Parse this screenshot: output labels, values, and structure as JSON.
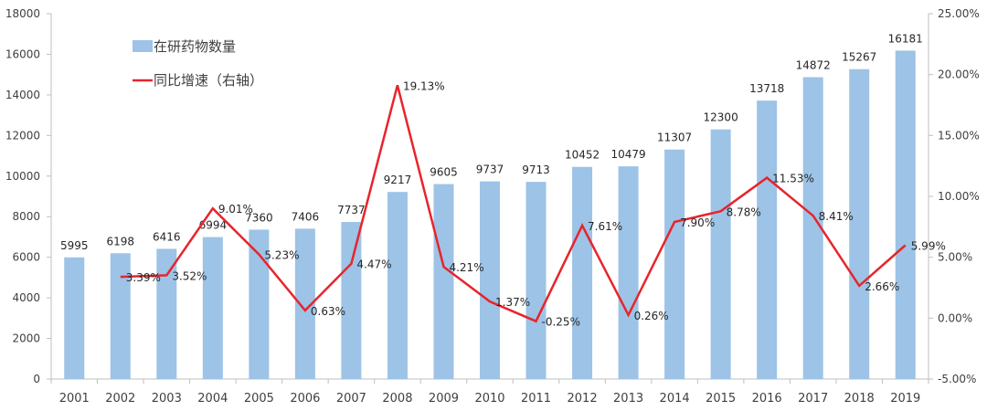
{
  "chart_data": {
    "type": "bar",
    "categories": [
      "2001",
      "2002",
      "2003",
      "2004",
      "2005",
      "2006",
      "2007",
      "2008",
      "2009",
      "2010",
      "2011",
      "2012",
      "2013",
      "2014",
      "2015",
      "2016",
      "2017",
      "2018",
      "2019"
    ],
    "series": [
      {
        "name": "在研药物数量",
        "type": "bar",
        "axis": "left",
        "color": "#9DC3E6",
        "values": [
          5995,
          6198,
          6416,
          6994,
          7360,
          7406,
          7737,
          9217,
          9605,
          9737,
          9713,
          10452,
          10479,
          11307,
          12300,
          13718,
          14872,
          15267,
          16181
        ],
        "labels": [
          "5995",
          "6198",
          "6416",
          "6994",
          "7360",
          "7406",
          "7737",
          "9217",
          "9605",
          "9737",
          "9713",
          "10452",
          "10479",
          "11307",
          "12300",
          "13718",
          "14872",
          "15267",
          "16181"
        ]
      },
      {
        "name": "同比增速（右轴）",
        "type": "line",
        "axis": "right",
        "color": "#E8242B",
        "values": [
          null,
          3.39,
          3.52,
          9.01,
          5.23,
          0.63,
          4.47,
          19.13,
          4.21,
          1.37,
          -0.25,
          7.61,
          0.26,
          7.9,
          8.78,
          11.53,
          8.41,
          2.66,
          5.99
        ],
        "labels": [
          "",
          "3.39%",
          "3.52%",
          "9.01%",
          "5.23%",
          "0.63%",
          "4.47%",
          "19.13%",
          "4.21%",
          "1.37%",
          "-0.25%",
          "7.61%",
          "0.26%",
          "7.90%",
          "8.78%",
          "11.53%",
          "8.41%",
          "2.66%",
          "5.99%"
        ]
      }
    ],
    "left_axis": {
      "range": [
        0,
        18000
      ],
      "ticks": [
        0,
        2000,
        4000,
        6000,
        8000,
        10000,
        12000,
        14000,
        16000,
        18000
      ],
      "tick_labels": [
        "0",
        "2000",
        "4000",
        "6000",
        "8000",
        "10000",
        "12000",
        "14000",
        "16000",
        "18000"
      ]
    },
    "right_axis": {
      "range": [
        -5,
        25
      ],
      "ticks": [
        -5,
        0,
        5,
        10,
        15,
        20,
        25
      ],
      "tick_labels": [
        "-5.00%",
        "0.00%",
        "5.00%",
        "10.00%",
        "15.00%",
        "20.00%",
        "25.00%"
      ]
    },
    "legend": {
      "position": "top-left",
      "items": [
        {
          "label": "在研药物数量",
          "kind": "bar",
          "color": "#9DC3E6"
        },
        {
          "label": "同比增速（右轴）",
          "kind": "line",
          "color": "#E8242B"
        }
      ]
    },
    "grid": false
  }
}
